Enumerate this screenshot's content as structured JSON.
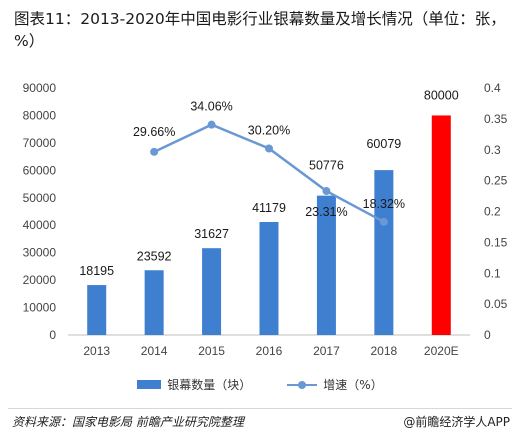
{
  "title": "图表11：2013-2020年中国电影行业银幕数量及增长情况（单位：张，%）",
  "source": "资料来源：国家电影局 前瞻产业研究院整理",
  "brand": "@前瞻经济学人APP",
  "colors": {
    "bar": "#3f7fd0",
    "bar_highlight": "#ff0000",
    "line": "#6a98d4"
  },
  "chart_data": {
    "type": "bar",
    "categories": [
      "2013",
      "2014",
      "2015",
      "2016",
      "2017",
      "2018",
      "2020E"
    ],
    "series": [
      {
        "name": "银幕数量（块）",
        "type": "bar",
        "axis": "left",
        "values": [
          18195,
          23592,
          31627,
          41179,
          50776,
          60079,
          80000
        ],
        "labels": [
          "18195",
          "23592",
          "31627",
          "41179",
          "50776",
          "60079",
          "80000"
        ]
      },
      {
        "name": "增速（%）",
        "type": "line",
        "axis": "right",
        "values": [
          null,
          0.2966,
          0.3406,
          0.302,
          0.2331,
          0.1832,
          null
        ],
        "labels": [
          "",
          "29.66%",
          "34.06%",
          "30.20%",
          "23.31%",
          "18.32%",
          ""
        ]
      }
    ],
    "y_left": {
      "min": 0,
      "max": 90000,
      "step": 10000,
      "ticks": [
        "0",
        "10000",
        "20000",
        "30000",
        "40000",
        "50000",
        "60000",
        "70000",
        "80000",
        "90000"
      ]
    },
    "y_right": {
      "min": 0,
      "max": 0.4,
      "step": 0.05,
      "ticks": [
        "0",
        "0.05",
        "0.1",
        "0.15",
        "0.2",
        "0.25",
        "0.3",
        "0.35",
        "0.4"
      ]
    },
    "highlight_category": "2020E",
    "grid": false,
    "legend_position": "bottom"
  }
}
